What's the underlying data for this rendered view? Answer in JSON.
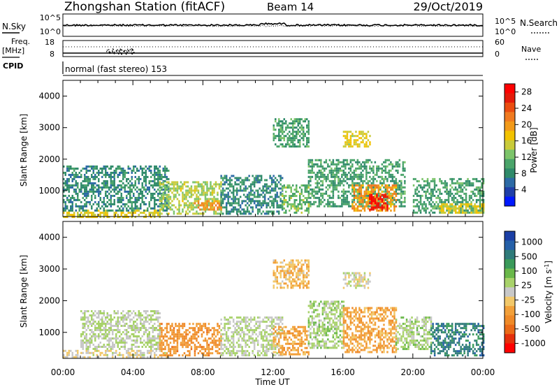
{
  "header": {
    "station": "Zhongshan Station (fitACF)",
    "beam": "Beam 14",
    "date": "29/Oct/2019"
  },
  "sky_panel": {
    "left_label": "N.Sky",
    "right_label": "N.Search",
    "ticks_left": [
      "10^5",
      "10^0"
    ],
    "ticks_right": [
      "10^5",
      "10^0"
    ]
  },
  "freq_panel": {
    "left_label_1": "Freq.",
    "left_label_2": "[MHz]",
    "right_label": "Nave",
    "ticks_left": [
      "18",
      "8"
    ],
    "ticks_right": [
      "60",
      "0"
    ]
  },
  "cpid": {
    "label": "CPID",
    "text": "normal (fast stereo) 153"
  },
  "axes": {
    "ylabel": "Slant Range [km]",
    "xlabel": "Time UT",
    "yticks": [
      "1000",
      "2000",
      "3000",
      "4000"
    ],
    "xticks": [
      "00:00",
      "04:00",
      "08:00",
      "12:00",
      "16:00",
      "20:00",
      "00:00"
    ]
  },
  "colorbars": {
    "power": {
      "label": "Power [dB]",
      "ticks": [
        "4",
        "8",
        "12",
        "16",
        "20",
        "24",
        "28"
      ],
      "colors": [
        "#0018ff",
        "#1f3fa8",
        "#2c6aa5",
        "#2f8a6a",
        "#4aa46a",
        "#7cc46a",
        "#c9cb3a",
        "#f2c200",
        "#f29a1a",
        "#f07a20",
        "#ea4d10",
        "#e41a0a",
        "#ff0000"
      ]
    },
    "velocity": {
      "label": "Velocity [m s^-1]",
      "ticks": [
        "1000",
        "500",
        "100",
        "25",
        "-25",
        "-100",
        "-500",
        "-1000"
      ],
      "colors": [
        "#1b3fa6",
        "#2560a8",
        "#2f7b7a",
        "#3a9a5a",
        "#6ab84a",
        "#a8d26a",
        "#c8c8c8",
        "#f2c86a",
        "#f2a03a",
        "#ef8a28",
        "#ea6a18",
        "#e4300c",
        "#ff0000"
      ]
    }
  },
  "chart_data": [
    {
      "type": "heatmap",
      "title": "Power",
      "xlabel": "Time UT",
      "ylabel": "Slant Range [km]",
      "x_range": [
        "00:00",
        "24:00"
      ],
      "ylim": [
        180,
        4500
      ],
      "colorbar_label": "Power [dB]",
      "colorbar_range": [
        0,
        30
      ],
      "regions": [
        {
          "t0": 0.0,
          "t1": 5.5,
          "r0": 200,
          "r1": 400,
          "value": 16
        },
        {
          "t0": 0.0,
          "t1": 6.0,
          "r0": 400,
          "r1": 1800,
          "value": 8
        },
        {
          "t0": 5.5,
          "t1": 9.0,
          "r0": 300,
          "r1": 1300,
          "value": 14
        },
        {
          "t0": 7.5,
          "t1": 9.0,
          "r0": 400,
          "r1": 700,
          "value": 20
        },
        {
          "t0": 9.0,
          "t1": 12.5,
          "r0": 300,
          "r1": 1500,
          "value": 8
        },
        {
          "t0": 12.0,
          "t1": 14.0,
          "r0": 2400,
          "r1": 3300,
          "value": 10
        },
        {
          "t0": 12.5,
          "t1": 14.0,
          "r0": 300,
          "r1": 1200,
          "value": 12
        },
        {
          "t0": 14.0,
          "t1": 19.5,
          "r0": 500,
          "r1": 2000,
          "value": 10
        },
        {
          "t0": 16.0,
          "t1": 17.5,
          "r0": 2400,
          "r1": 2900,
          "value": 16
        },
        {
          "t0": 16.5,
          "t1": 19.0,
          "r0": 400,
          "r1": 1200,
          "value": 20
        },
        {
          "t0": 17.5,
          "t1": 18.5,
          "r0": 400,
          "r1": 900,
          "value": 28
        },
        {
          "t0": 20.0,
          "t1": 24.0,
          "r0": 300,
          "r1": 1400,
          "value": 10
        },
        {
          "t0": 21.5,
          "t1": 24.0,
          "r0": 300,
          "r1": 600,
          "value": 16
        }
      ]
    },
    {
      "type": "heatmap",
      "title": "Velocity",
      "xlabel": "Time UT",
      "ylabel": "Slant Range [km]",
      "x_range": [
        "00:00",
        "24:00"
      ],
      "ylim": [
        180,
        4500
      ],
      "colorbar_label": "Velocity [m s^-1]",
      "colorbar_range": [
        -1000,
        1000
      ],
      "regions": [
        {
          "t0": 0.0,
          "t1": 6.0,
          "r0": 200,
          "r1": 450,
          "value": -50
        },
        {
          "t0": 1.0,
          "t1": 5.5,
          "r0": 450,
          "r1": 1700,
          "value": 80
        },
        {
          "t0": 5.5,
          "t1": 9.0,
          "r0": 300,
          "r1": 1300,
          "value": -400
        },
        {
          "t0": 9.0,
          "t1": 12.5,
          "r0": 300,
          "r1": 1500,
          "value": 80
        },
        {
          "t0": 12.0,
          "t1": 14.0,
          "r0": 2400,
          "r1": 3300,
          "value": -200
        },
        {
          "t0": 12.0,
          "t1": 14.0,
          "r0": 300,
          "r1": 1200,
          "value": -300
        },
        {
          "t0": 14.0,
          "t1": 16.0,
          "r0": 500,
          "r1": 2000,
          "value": 150
        },
        {
          "t0": 16.0,
          "t1": 17.5,
          "r0": 2400,
          "r1": 2900,
          "value": 0
        },
        {
          "t0": 16.0,
          "t1": 19.0,
          "r0": 400,
          "r1": 1800,
          "value": -300
        },
        {
          "t0": 19.0,
          "t1": 21.0,
          "r0": 500,
          "r1": 1500,
          "value": 150
        },
        {
          "t0": 21.0,
          "t1": 24.0,
          "r0": 300,
          "r1": 1300,
          "value": 600
        }
      ]
    }
  ]
}
